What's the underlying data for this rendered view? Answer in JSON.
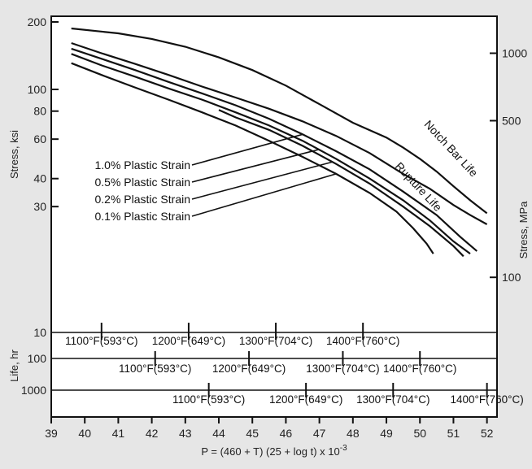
{
  "chart_data": {
    "type": "line",
    "title": "",
    "xlabel": "P = (460 + T) (25 + log t) x 10",
    "xlabel_sup": "-3",
    "ylabel_left": "Stress, ksi",
    "ylabel_right": "Stress, MPa",
    "life_label": "Life, hr",
    "xlim": [
      39,
      52.3
    ],
    "x_ticks": [
      39,
      40,
      41,
      42,
      43,
      44,
      45,
      46,
      47,
      48,
      49,
      50,
      51,
      52
    ],
    "y_ticks_left": [
      {
        "value": 200,
        "label": "200"
      },
      {
        "value": 100,
        "label": "100"
      },
      {
        "value": 80,
        "label": "80"
      },
      {
        "value": 60,
        "label": "60"
      },
      {
        "value": 40,
        "label": "40"
      },
      {
        "value": 30,
        "label": "30"
      }
    ],
    "y_ticks_right": [
      {
        "value": 1000,
        "label": "1000"
      },
      {
        "value": 500,
        "label": "500"
      },
      {
        "value": 100,
        "label": "100"
      }
    ],
    "series": [
      {
        "name": "Notch Bar Life",
        "points": [
          [
            39.6,
            187
          ],
          [
            41,
            178
          ],
          [
            42,
            168
          ],
          [
            43,
            155
          ],
          [
            44,
            139
          ],
          [
            45,
            122
          ],
          [
            46,
            104
          ],
          [
            47,
            86
          ],
          [
            48,
            71
          ],
          [
            49,
            61
          ],
          [
            49.5,
            55
          ],
          [
            50,
            49
          ],
          [
            50.5,
            43
          ],
          [
            51,
            37
          ],
          [
            51.5,
            32
          ],
          [
            52,
            28
          ]
        ]
      },
      {
        "name": "Rupture Life",
        "points": [
          [
            39.6,
            161
          ],
          [
            40.5,
            145
          ],
          [
            41.5,
            130
          ],
          [
            42.5,
            116
          ],
          [
            43.5,
            103
          ],
          [
            44.5,
            92
          ],
          [
            45.5,
            82
          ],
          [
            46.5,
            72
          ],
          [
            47.5,
            62
          ],
          [
            48.5,
            52
          ],
          [
            49.5,
            42
          ],
          [
            50.3,
            36
          ],
          [
            51,
            30.5
          ],
          [
            51.5,
            27.5
          ],
          [
            52,
            25
          ]
        ]
      },
      {
        "name": "1.0% Plastic Strain",
        "points": [
          [
            39.6,
            152
          ],
          [
            40.5,
            137
          ],
          [
            41.5,
            122
          ],
          [
            42.5,
            108
          ],
          [
            43.5,
            96
          ],
          [
            44.5,
            85
          ],
          [
            45.5,
            74
          ],
          [
            46.5,
            63
          ],
          [
            47.5,
            53
          ],
          [
            48.5,
            44
          ],
          [
            49.5,
            35
          ],
          [
            50.5,
            27.5
          ],
          [
            51.2,
            22
          ],
          [
            51.7,
            19
          ]
        ]
      },
      {
        "name": "0.5% Plastic Strain",
        "points": [
          [
            39.6,
            144
          ],
          [
            40.5,
            128
          ],
          [
            41.5,
            114
          ],
          [
            42.5,
            101
          ],
          [
            43.5,
            90
          ],
          [
            44.5,
            79
          ],
          [
            45.5,
            69
          ],
          [
            46.5,
            59
          ],
          [
            47.5,
            49
          ],
          [
            48.5,
            40
          ],
          [
            49.5,
            32
          ],
          [
            50.3,
            26
          ],
          [
            51,
            21
          ],
          [
            51.5,
            18.5
          ]
        ]
      },
      {
        "name": "0.2% Plastic Strain",
        "points": [
          [
            44,
            81
          ],
          [
            44.5,
            75
          ],
          [
            45.5,
            66
          ],
          [
            46.5,
            56
          ],
          [
            47.5,
            46.5
          ],
          [
            48.5,
            38
          ],
          [
            49.5,
            30
          ],
          [
            50.3,
            24.5
          ],
          [
            51,
            20
          ],
          [
            51.3,
            18
          ]
        ]
      },
      {
        "name": "0.1% Plastic Strain",
        "points": [
          [
            39.6,
            131
          ],
          [
            40.5,
            116
          ],
          [
            41.5,
            102
          ],
          [
            42.5,
            90
          ],
          [
            43.5,
            79
          ],
          [
            44.5,
            69
          ],
          [
            45.5,
            59
          ],
          [
            46.5,
            50
          ],
          [
            47.5,
            42
          ],
          [
            48.5,
            34.5
          ],
          [
            49.3,
            28.5
          ],
          [
            49.8,
            24
          ],
          [
            50.2,
            20.5
          ],
          [
            50.4,
            18.5
          ]
        ]
      }
    ],
    "notes": [
      {
        "label": "1.0% Plastic Strain",
        "target": [
          46.5,
          63
        ]
      },
      {
        "label": "0.5% Plastic Strain",
        "target": [
          47,
          54
        ]
      },
      {
        "label": "0.2% Plastic Strain",
        "target": [
          47.4,
          47.5
        ]
      },
      {
        "label": "0.1% Plastic Strain",
        "target": [
          47.5,
          42
        ]
      }
    ],
    "life_scales": [
      {
        "life": "10",
        "temps": [
          {
            "label": "1100°F(593°C)",
            "p": 40.5
          },
          {
            "label": "1200°F(649°C)",
            "p": 43.1
          },
          {
            "label": "1300°F(704°C)",
            "p": 45.7
          },
          {
            "label": "1400°F(760°C)",
            "p": 48.3
          }
        ]
      },
      {
        "life": "100",
        "temps": [
          {
            "label": "1100°F(593°C)",
            "p": 42.1
          },
          {
            "label": "1200°F(649°C)",
            "p": 44.9
          },
          {
            "label": "1300°F(704°C)",
            "p": 47.7
          },
          {
            "label": "1400°F(760°C)",
            "p": 50.0
          }
        ]
      },
      {
        "life": "1000",
        "temps": [
          {
            "label": "1100°F(593°C)",
            "p": 43.7
          },
          {
            "label": "1200°F(649°C)",
            "p": 46.6
          },
          {
            "label": "1300°F(704°C)",
            "p": 49.2
          },
          {
            "label": "1400°F(760°C)",
            "p": 52.0
          }
        ]
      }
    ],
    "grid": false,
    "legend": "none"
  }
}
